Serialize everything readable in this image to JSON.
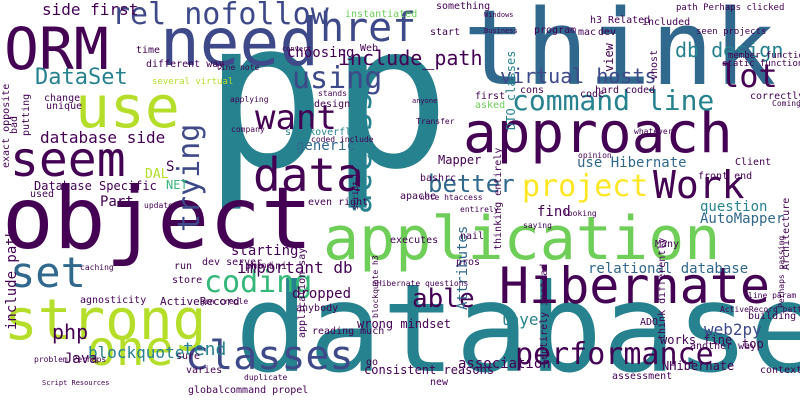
{
  "palette": {
    "dark_purple": "#440154",
    "indigo": "#3e4989",
    "blue": "#31688e",
    "teal": "#26828e",
    "green_teal": "#1f9e89",
    "green": "#35b779",
    "light_green": "#6ece58",
    "lime": "#b5de2b",
    "yellow": "#fde725"
  },
  "words": [
    {
      "text": "p"
    },
    {
      "text": "database"
    },
    {
      "text": "object"
    },
    {
      "text": "think"
    },
    {
      "text": "need"
    },
    {
      "text": "application"
    },
    {
      "text": "approach"
    },
    {
      "text": "Hibernate"
    },
    {
      "text": "strong"
    },
    {
      "text": "ORM"
    },
    {
      "text": "use"
    },
    {
      "text": "data"
    },
    {
      "text": "seem"
    },
    {
      "text": "classes"
    },
    {
      "text": "command line"
    },
    {
      "text": "Work"
    },
    {
      "text": "one"
    },
    {
      "text": "set"
    },
    {
      "text": "performance"
    },
    {
      "text": "coding"
    },
    {
      "text": "project"
    },
    {
      "text": "href"
    },
    {
      "text": "rel nofollow"
    },
    {
      "text": "DataSet"
    },
    {
      "text": "include_path"
    },
    {
      "text": "using"
    },
    {
      "text": "want"
    },
    {
      "text": "access"
    },
    {
      "text": "trying"
    },
    {
      "text": "lot"
    },
    {
      "text": "db design"
    },
    {
      "text": "better"
    },
    {
      "text": "able"
    },
    {
      "text": "virtual hosts"
    },
    {
      "text": "side first"
    },
    {
      "text": "database side"
    },
    {
      "text": "choosing"
    },
    {
      "text": "use Hibernate"
    },
    {
      "text": "tend"
    },
    {
      "text": "important db"
    },
    {
      "text": "php"
    },
    {
      "text": "blockquote"
    },
    {
      "text": "layer"
    },
    {
      "text": "web2py"
    },
    {
      "text": "AutoMapper"
    },
    {
      "text": "question"
    },
    {
      "text": "relational database"
    },
    {
      "text": "DTO classes"
    },
    {
      "text": "Database Specific"
    },
    {
      "text": "include path"
    },
    {
      "text": "dropped"
    },
    {
      "text": "starting"
    },
    {
      "text": "Part"
    },
    {
      "text": "generic"
    },
    {
      "text": "Mapper"
    },
    {
      "text": "find"
    },
    {
      "text": "Attributes"
    },
    {
      "text": "association"
    },
    {
      "text": "consistent reasons"
    },
    {
      "text": "wrong mindset"
    },
    {
      "text": "NHibernate"
    },
    {
      "text": "works fine"
    },
    {
      "text": "top"
    },
    {
      "text": "Java"
    },
    {
      "text": "DAL"
    },
    {
      "text": "NET"
    },
    {
      "text": "S"
    },
    {
      "text": "Web"
    },
    {
      "text": "view"
    },
    {
      "text": "apache"
    },
    {
      "text": "ActiveRecord"
    },
    {
      "text": "ADO"
    },
    {
      "text": "Architecture"
    },
    {
      "text": "context"
    },
    {
      "text": "stackoverflow"
    },
    {
      "text": "different way"
    },
    {
      "text": "unique"
    },
    {
      "text": "change"
    },
    {
      "text": "used"
    },
    {
      "text": "instantiated"
    },
    {
      "text": "something"
    },
    {
      "text": "first"
    },
    {
      "text": "asked"
    },
    {
      "text": "cons"
    },
    {
      "text": "hard coded"
    },
    {
      "text": "vhost"
    },
    {
      "text": "correctly"
    },
    {
      "text": "building"
    },
    {
      "text": "Client"
    },
    {
      "text": "front end"
    },
    {
      "text": "Many"
    },
    {
      "text": "nail"
    },
    {
      "text": "pros"
    },
    {
      "text": "executes"
    },
    {
      "text": "even right"
    },
    {
      "text": "anybody"
    },
    {
      "text": "reading much"
    },
    {
      "text": "dev server"
    },
    {
      "text": "run"
    },
    {
      "text": "store"
    },
    {
      "text": "agnosticity"
    },
    {
      "text": "varies"
    },
    {
      "text": "sure"
    },
    {
      "text": "application say"
    },
    {
      "text": "go"
    },
    {
      "text": "new"
    },
    {
      "text": "global"
    },
    {
      "text": "command propel"
    },
    {
      "text": "assessment"
    },
    {
      "text": "php ini"
    },
    {
      "text": "thinking entirely"
    },
    {
      "text": "entirely instead"
    },
    {
      "text": "think differently"
    },
    {
      "text": "another way"
    },
    {
      "text": "exact opposite"
    },
    {
      "text": "putting"
    },
    {
      "text": "bad"
    },
    {
      "text": "time"
    },
    {
      "text": "mac"
    },
    {
      "text": "dev"
    },
    {
      "text": "program"
    },
    {
      "text": "start"
    },
    {
      "text": "design"
    },
    {
      "text": "code"
    },
    {
      "text": "h3 Related"
    },
    {
      "text": "included"
    },
    {
      "text": "path Perhaps clicked"
    },
    {
      "text": "seen projects"
    },
    {
      "text": "static functions"
    },
    {
      "text": "member functions"
    },
    {
      "text": "several virtual"
    },
    {
      "text": "line note"
    },
    {
      "text": "applying"
    },
    {
      "text": "company"
    },
    {
      "text": "stands"
    },
    {
      "text": "coded include"
    },
    {
      "text": "bashrc"
    },
    {
      "text": "note htaccess"
    },
    {
      "text": "nHibernate questions"
    },
    {
      "text": "blockquote h3"
    },
    {
      "text": "Perhaps passing"
    },
    {
      "text": "line param"
    },
    {
      "text": "ActiveRecord pattern"
    },
    {
      "text": "gen creole"
    },
    {
      "text": "caching"
    },
    {
      "text": "update"
    },
    {
      "text": "mind"
    },
    {
      "text": "Coming"
    },
    {
      "text": "Transfer"
    },
    {
      "text": "opinion"
    },
    {
      "text": "whatever"
    },
    {
      "text": "looking"
    },
    {
      "text": "saying"
    },
    {
      "text": "script"
    },
    {
      "text": "problem Perhaps"
    },
    {
      "text": "Script Resources"
    },
    {
      "text": "duplicate"
    },
    {
      "text": "entirely"
    },
    {
      "text": "convert"
    },
    {
      "text": "anyone"
    },
    {
      "text": "Business"
    },
    {
      "text": "Windows"
    }
  ]
}
